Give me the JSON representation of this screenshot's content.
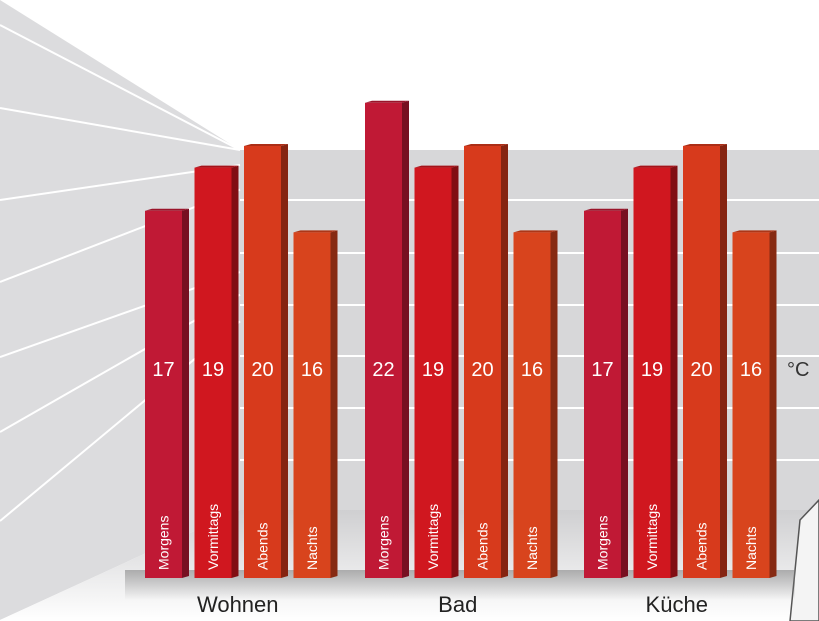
{
  "chart_data": {
    "type": "bar",
    "unit": "°C",
    "categories": [
      "Wohnen",
      "Bad",
      "Küche"
    ],
    "series_labels": [
      "Morgens",
      "Vormittags",
      "Abends",
      "Nachts"
    ],
    "values": [
      [
        17,
        19,
        20,
        16
      ],
      [
        22,
        19,
        20,
        16
      ],
      [
        17,
        19,
        20,
        16
      ]
    ],
    "colors": {
      "Morgens": "#c01935",
      "Vormittags": "#d0171f",
      "Abends": "#d73a1c",
      "Nachts": "#d8441d"
    },
    "grid": true
  }
}
